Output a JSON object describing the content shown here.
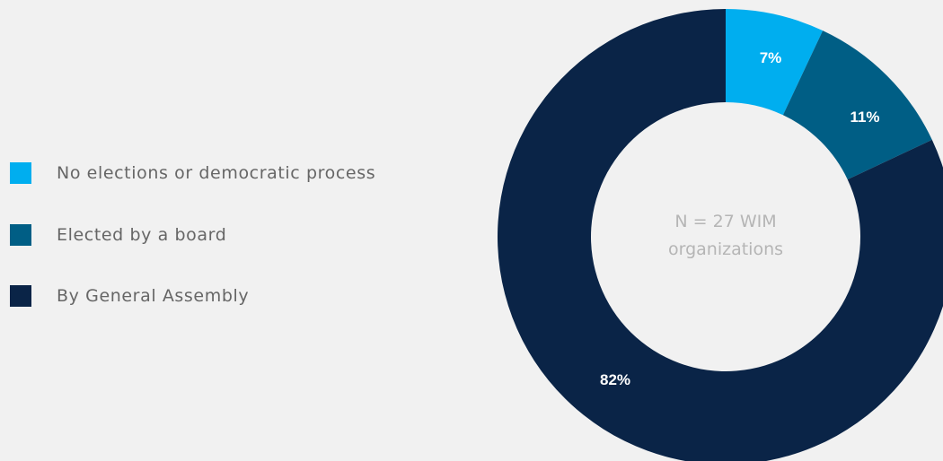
{
  "chart_data": {
    "type": "pie",
    "categories": [
      "No elections or democratic process",
      "Elected by a board",
      "By General Assembly"
    ],
    "values": [
      7,
      11,
      82
    ],
    "value_labels": [
      "7%",
      "11%",
      "82%"
    ],
    "colors": [
      "#00aeef",
      "#005e85",
      "#0a2447"
    ],
    "center_text": [
      "N = 27 WIM",
      "organizations"
    ],
    "legend_placement": "left"
  }
}
